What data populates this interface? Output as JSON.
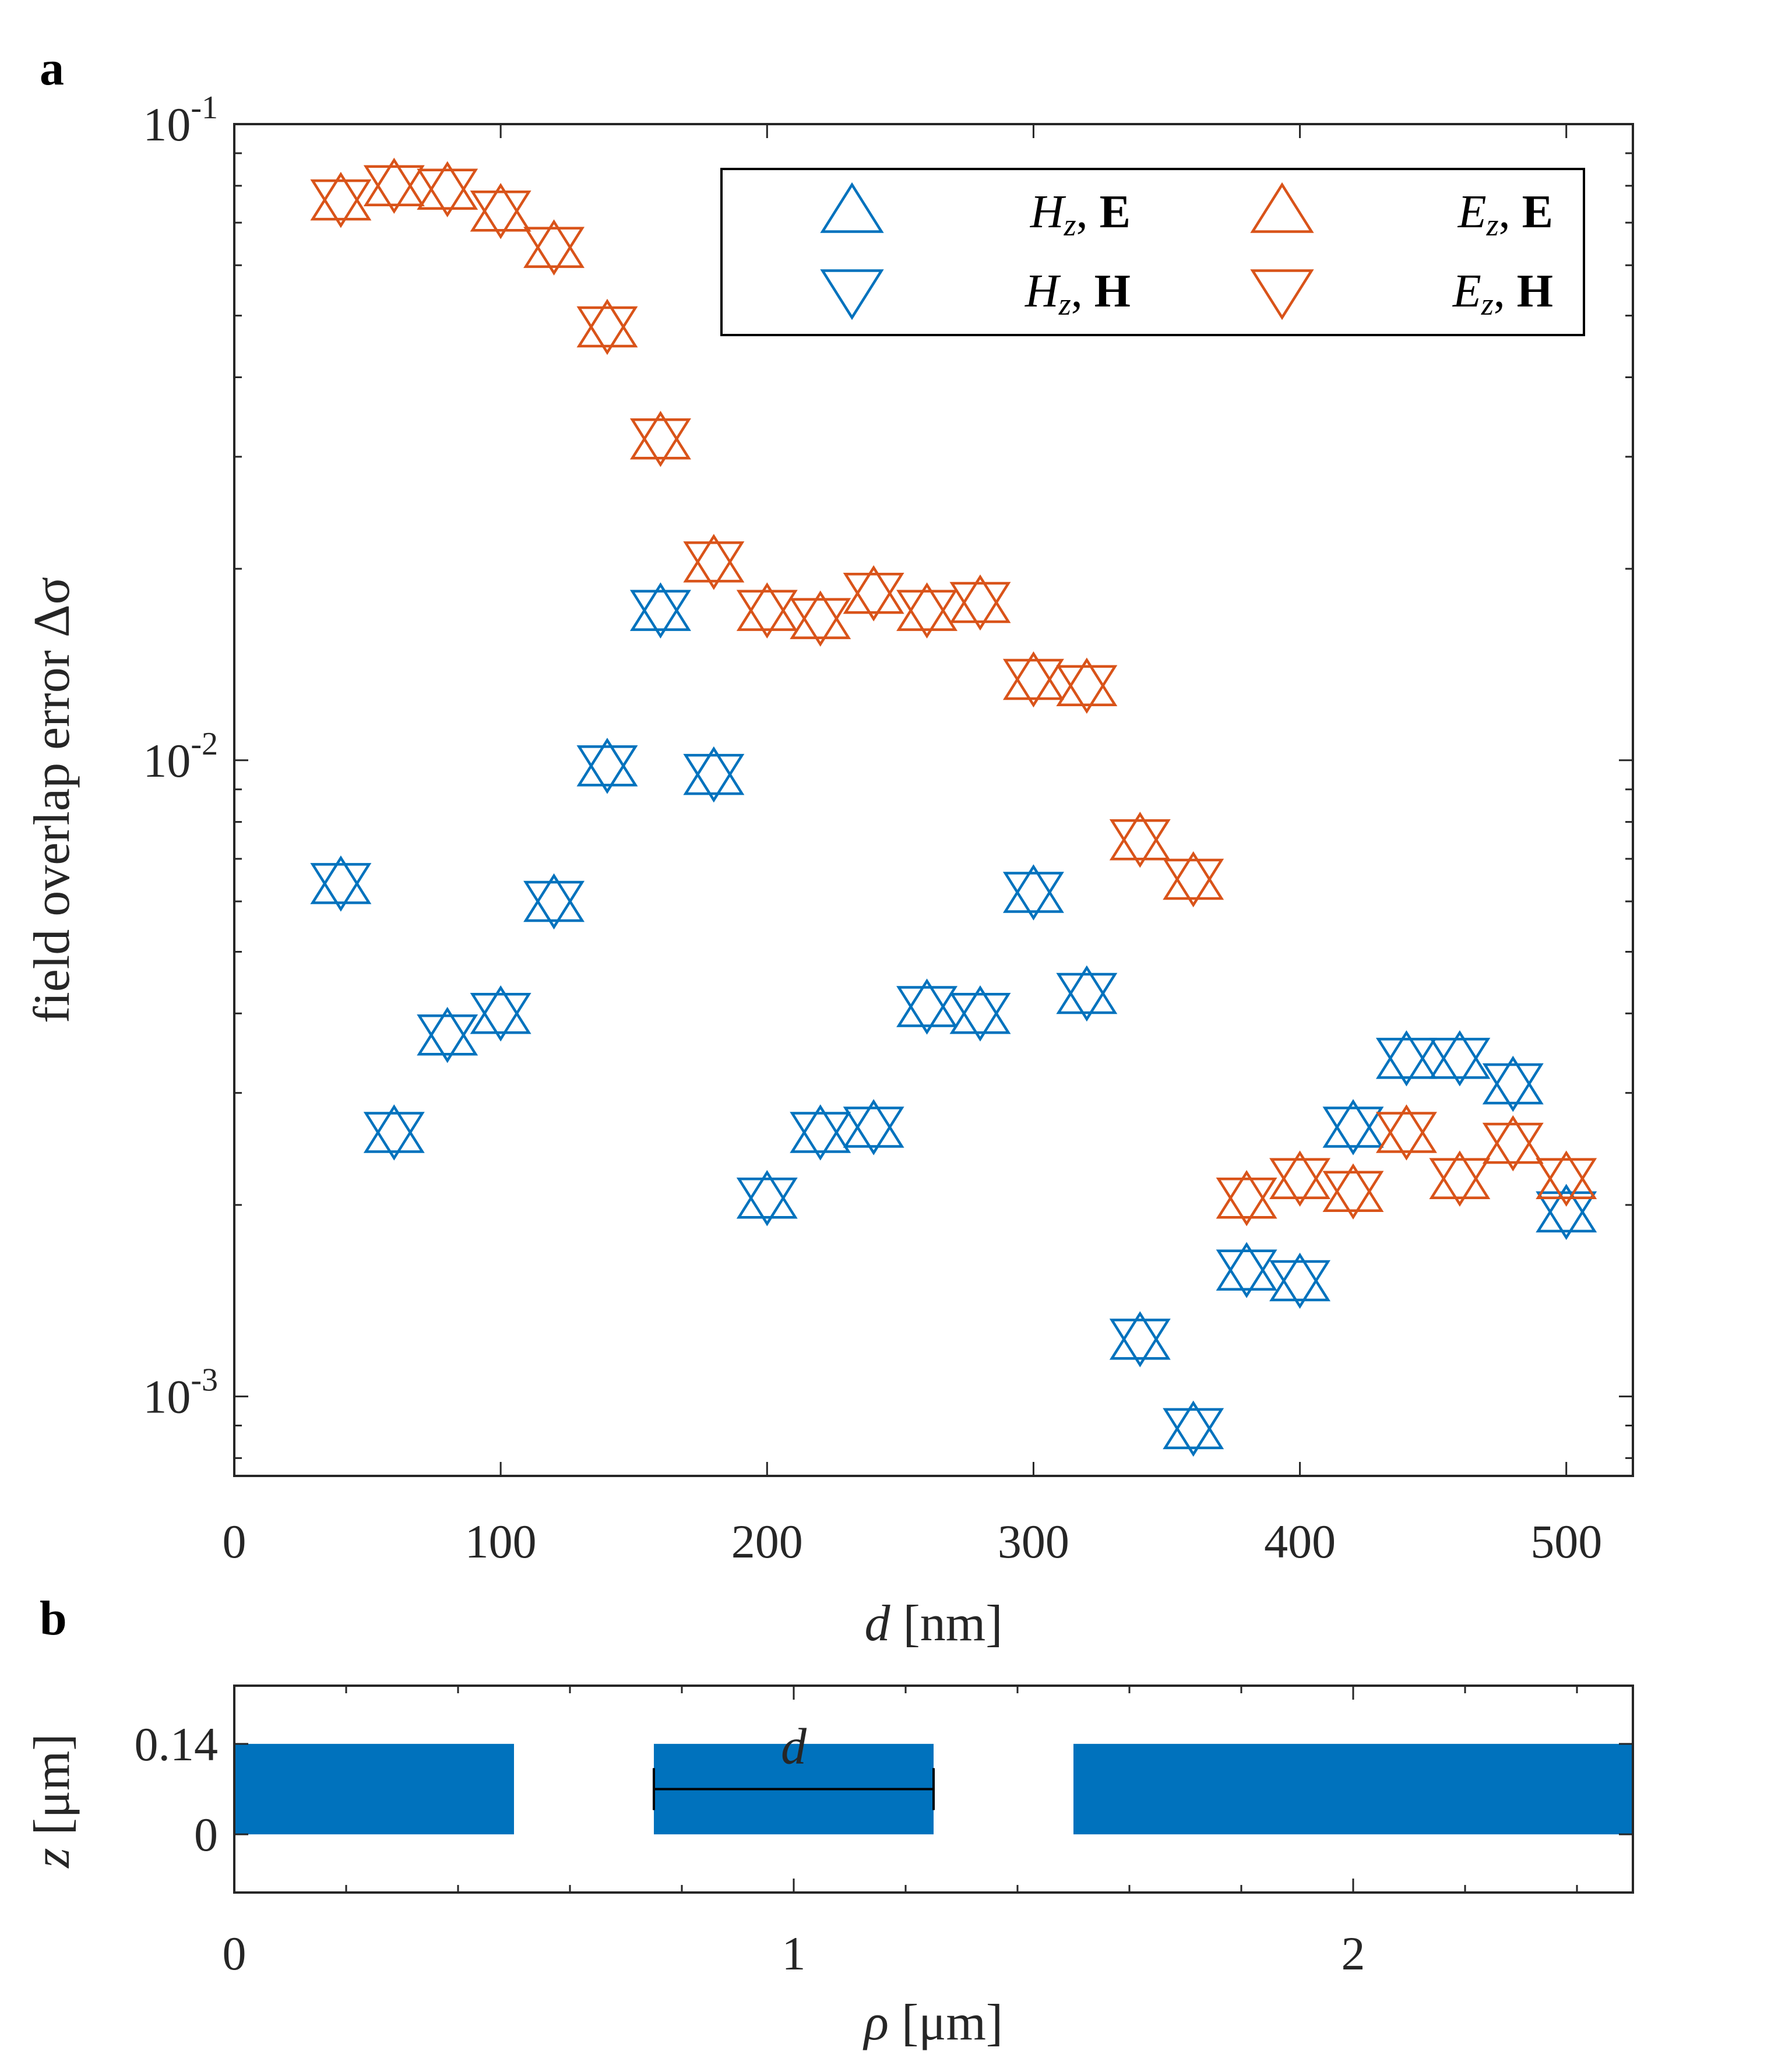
{
  "chart_data": [
    {
      "panel": "a",
      "type": "scatter",
      "title": "",
      "xlabel": "d [nm]",
      "ylabel": "field overlap error Δσ",
      "xscale": "linear",
      "yscale": "log",
      "xlim": [
        0,
        525
      ],
      "ylim": [
        0.00075,
        0.1
      ],
      "xticks": [
        0,
        100,
        200,
        300,
        400,
        500
      ],
      "xtick_labels": [
        "0",
        "100",
        "200",
        "300",
        "400",
        "500"
      ],
      "yticks": [
        0.001,
        0.01,
        0.1
      ],
      "ytick_labels": [
        {
          "base": "10",
          "exp": "-3"
        },
        {
          "base": "10",
          "exp": "-2"
        },
        {
          "base": "10",
          "exp": "-1"
        }
      ],
      "legend_position": "top-right",
      "x": [
        40,
        60,
        80,
        100,
        120,
        140,
        160,
        180,
        200,
        220,
        240,
        260,
        280,
        300,
        320,
        340,
        360,
        380,
        400,
        420,
        440,
        460,
        480,
        500
      ],
      "series": [
        {
          "name": "H_z, E",
          "label_var": "H",
          "label_sub": "z",
          "label_field": "E",
          "marker": "triangle-up",
          "color": "#0072BD",
          "values": [
            0.0064,
            0.0026,
            0.0037,
            0.004,
            0.006,
            0.0098,
            0.0172,
            0.0095,
            0.00205,
            0.0026,
            0.00265,
            0.0041,
            0.004,
            0.0062,
            0.0043,
            0.00123,
            0.00089,
            0.00158,
            0.00152,
            0.00265,
            0.0034,
            0.0034,
            0.0031,
            0.00195
          ]
        },
        {
          "name": "H_z, H",
          "label_var": "H",
          "label_sub": "z",
          "label_field": "H",
          "marker": "triangle-down",
          "color": "#0072BD",
          "values": [
            0.0064,
            0.0026,
            0.0037,
            0.004,
            0.006,
            0.0098,
            0.0172,
            0.0095,
            0.00205,
            0.0026,
            0.00265,
            0.0041,
            0.004,
            0.0062,
            0.0043,
            0.00123,
            0.00089,
            0.00158,
            0.00152,
            0.00265,
            0.0034,
            0.0034,
            0.0031,
            0.00195
          ]
        },
        {
          "name": "E_z, E",
          "label_var": "E",
          "label_sub": "z",
          "label_field": "E",
          "marker": "triangle-up",
          "color": "#D95319",
          "values": [
            0.076,
            0.08,
            0.079,
            0.073,
            0.064,
            0.048,
            0.032,
            0.0205,
            0.0172,
            0.0167,
            0.0183,
            0.0172,
            0.0177,
            0.0134,
            0.0131,
            0.0075,
            0.0065,
            0.00205,
            0.0022,
            0.0021,
            0.0026,
            0.0022,
            0.0025,
            0.0022
          ]
        },
        {
          "name": "E_z, H",
          "label_var": "E",
          "label_sub": "z",
          "label_field": "H",
          "marker": "triangle-down",
          "color": "#D95319",
          "values": [
            0.076,
            0.08,
            0.079,
            0.073,
            0.064,
            0.048,
            0.032,
            0.0205,
            0.0172,
            0.0167,
            0.0183,
            0.0172,
            0.0177,
            0.0134,
            0.0131,
            0.0075,
            0.0065,
            0.00205,
            0.0022,
            0.0021,
            0.0026,
            0.0022,
            0.0025,
            0.0022
          ]
        }
      ]
    },
    {
      "panel": "b",
      "type": "geometry",
      "title": "",
      "xlabel": "ρ [μm]",
      "ylabel": "z [μm]",
      "xlim": [
        0,
        2.5
      ],
      "ylim": [
        -0.09,
        0.23
      ],
      "xticks": [
        0,
        1,
        2
      ],
      "xtick_labels": [
        "0",
        "1",
        "2"
      ],
      "yticks": [
        0,
        0.14
      ],
      "ytick_labels": [
        "0",
        "0.14"
      ],
      "fill_color": "#0072BD",
      "blocks": [
        {
          "x0": 0,
          "x1": 0.5,
          "z0": 0,
          "z1": 0.14
        },
        {
          "x0": 0.75,
          "x1": 1.25,
          "z0": 0,
          "z1": 0.14
        },
        {
          "x0": 1.5,
          "x1": 2.5,
          "z0": 0,
          "z1": 0.14
        }
      ],
      "dimension": {
        "label": "d",
        "x0": 0.75,
        "x1": 1.25,
        "z": 0.07
      }
    }
  ],
  "panel_labels": {
    "a": "a",
    "b": "b"
  }
}
